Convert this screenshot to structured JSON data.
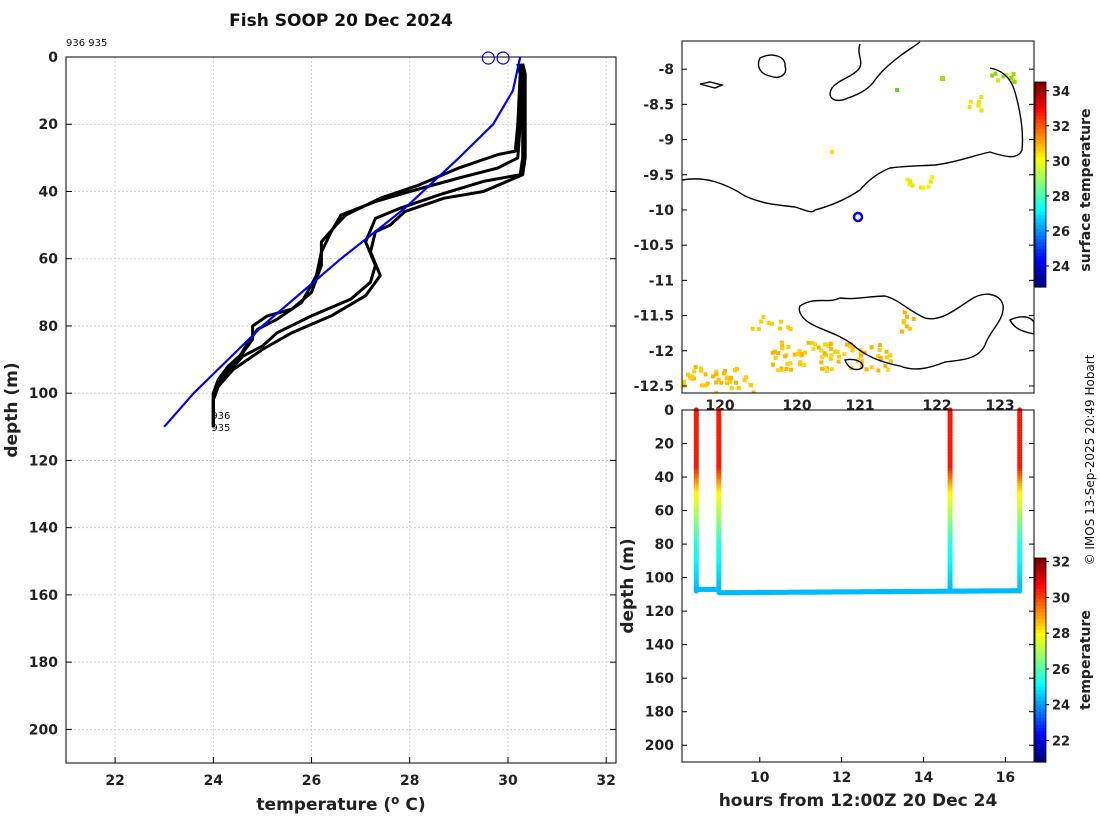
{
  "title": "Fish SOOP 20 Dec 2024",
  "profile_ids_label": "936 935",
  "credit": "© IMOS 13-Sep-2025 20:49 Hobart",
  "colors": {
    "observed": "#000000",
    "climatology": "#0000ff",
    "marker": "#0000ff"
  },
  "chart_data": [
    {
      "type": "line",
      "name": "temperature-depth-profiles",
      "xlabel": "temperature (° C)",
      "ylabel": "depth (m)",
      "xlim": [
        21,
        32.2
      ],
      "ylim": [
        210,
        0
      ],
      "xticks": [
        22,
        24,
        26,
        28,
        30,
        32
      ],
      "yticks": [
        0,
        20,
        40,
        60,
        80,
        100,
        120,
        140,
        160,
        180,
        200
      ],
      "grid": true,
      "series": [
        {
          "name": "profile-a",
          "color": "#000000",
          "points": [
            [
              30.2,
              2
            ],
            [
              30.25,
              5
            ],
            [
              30.2,
              20
            ],
            [
              30.15,
              28
            ],
            [
              29.8,
              29
            ],
            [
              29.0,
              33
            ],
            [
              28.2,
              38
            ],
            [
              27.4,
              42
            ],
            [
              26.7,
              47
            ],
            [
              26.5,
              50
            ],
            [
              26.2,
              55
            ],
            [
              26.2,
              62
            ],
            [
              26.0,
              70
            ],
            [
              25.6,
              75
            ],
            [
              25.1,
              77
            ],
            [
              24.8,
              80
            ],
            [
              24.8,
              84
            ],
            [
              24.6,
              88
            ],
            [
              24.3,
              92
            ],
            [
              24.1,
              96
            ],
            [
              24.0,
              100
            ],
            [
              24.0,
              110
            ]
          ]
        },
        {
          "name": "profile-b",
          "color": "#000000",
          "points": [
            [
              30.25,
              2
            ],
            [
              30.3,
              5
            ],
            [
              30.25,
              20
            ],
            [
              30.2,
              30
            ],
            [
              29.8,
              33
            ],
            [
              29.0,
              36
            ],
            [
              28.0,
              40
            ],
            [
              27.3,
              43
            ],
            [
              26.6,
              47
            ],
            [
              26.4,
              52
            ],
            [
              26.2,
              58
            ],
            [
              26.1,
              65
            ],
            [
              25.8,
              73
            ],
            [
              25.3,
              78
            ],
            [
              24.9,
              81
            ],
            [
              24.7,
              85
            ],
            [
              24.5,
              90
            ],
            [
              24.2,
              95
            ],
            [
              24.0,
              100
            ],
            [
              24.0,
              110
            ]
          ]
        },
        {
          "name": "profile-c",
          "color": "#000000",
          "points": [
            [
              30.3,
              2
            ],
            [
              30.3,
              5
            ],
            [
              30.3,
              30
            ],
            [
              30.25,
              35
            ],
            [
              29.5,
              37
            ],
            [
              28.6,
              41
            ],
            [
              27.8,
              45
            ],
            [
              27.3,
              48
            ],
            [
              27.1,
              55
            ],
            [
              27.3,
              62
            ],
            [
              27.2,
              67
            ],
            [
              26.8,
              72
            ],
            [
              26.0,
              77
            ],
            [
              25.3,
              82
            ],
            [
              25.0,
              86
            ],
            [
              24.6,
              89
            ],
            [
              24.3,
              94
            ],
            [
              24.1,
              98
            ],
            [
              24.0,
              102
            ],
            [
              24.0,
              110
            ]
          ]
        },
        {
          "name": "profile-d",
          "color": "#000000",
          "points": [
            [
              30.3,
              2
            ],
            [
              30.35,
              5
            ],
            [
              30.35,
              30
            ],
            [
              30.3,
              35
            ],
            [
              29.5,
              40
            ],
            [
              28.7,
              42
            ],
            [
              27.9,
              46
            ],
            [
              27.6,
              50
            ],
            [
              27.3,
              52
            ],
            [
              27.2,
              58
            ],
            [
              27.4,
              65
            ],
            [
              27.1,
              71
            ],
            [
              26.4,
              77
            ],
            [
              25.6,
              82
            ],
            [
              25.0,
              87
            ],
            [
              24.7,
              90
            ],
            [
              24.4,
              93
            ],
            [
              24.1,
              98
            ],
            [
              24.0,
              102
            ],
            [
              24.0,
              110
            ]
          ]
        },
        {
          "name": "climatology",
          "color": "#0000ff",
          "points": [
            [
              30.25,
              0
            ],
            [
              30.1,
              10
            ],
            [
              29.7,
              20
            ],
            [
              29.0,
              30
            ],
            [
              27.9,
              45
            ],
            [
              26.6,
              60
            ],
            [
              25.0,
              80
            ],
            [
              23.6,
              100
            ],
            [
              23.0,
              110
            ]
          ]
        }
      ],
      "markers": [
        {
          "temp": 29.6,
          "depth": 0
        },
        {
          "temp": 29.9,
          "depth": 0
        }
      ],
      "end_labels": [
        {
          "text": "936",
          "temp": 24.0,
          "depth": 108
        },
        {
          "text": "935",
          "temp": 24.0,
          "depth": 110
        }
      ]
    },
    {
      "type": "heatmap",
      "name": "surface-temperature-map",
      "colorbar_label": "surface temperature",
      "colorbar_range": [
        22.8,
        34.5
      ],
      "colorbar_ticks": [
        24,
        26,
        28,
        30,
        32,
        34
      ],
      "yticks": [
        -8,
        -8.5,
        -9,
        -9.5,
        -10,
        -10.5,
        -11,
        -11.5,
        -12,
        -12.5
      ],
      "xticks": [
        120,
        121,
        122,
        123
      ],
      "xtick_labels_partial": [
        "120",
        "120",
        "121",
        "122",
        "123"
      ],
      "ylim": [
        -12.6,
        -7.6
      ],
      "xlim": [
        118.5,
        123.5
      ],
      "position_marker": {
        "lon": 121.0,
        "lat": -10.1
      }
    },
    {
      "type": "scatter",
      "name": "depth-time-section",
      "xlabel": "hours from 12:00Z 20 Dec 24",
      "ylabel": "depth (m)",
      "colorbar_label": "temperature",
      "colorbar_range": [
        20.8,
        32.2
      ],
      "colorbar_ticks": [
        22,
        24,
        26,
        28,
        30,
        32
      ],
      "xlim": [
        8.1,
        16.7
      ],
      "ylim": [
        210,
        0
      ],
      "xticks": [
        10,
        12,
        14,
        16
      ],
      "yticks": [
        0,
        20,
        40,
        60,
        80,
        100,
        120,
        140,
        160,
        180,
        200
      ],
      "profiles_at_hours": [
        8.45,
        9.0,
        14.65,
        16.35
      ],
      "bottom_depth": 108
    }
  ]
}
